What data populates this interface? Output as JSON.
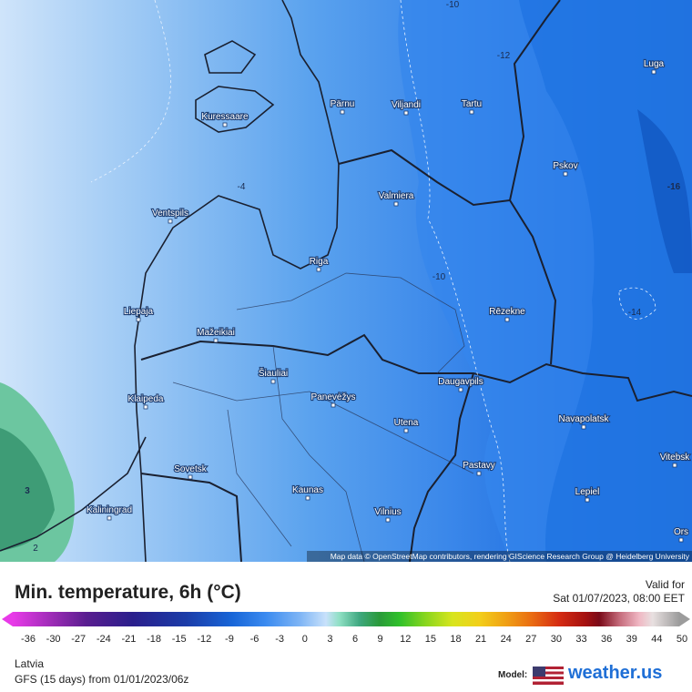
{
  "map": {
    "cities": [
      "Kuressaare",
      "Pärnu",
      "Viljandi",
      "Tartu",
      "Luga",
      "Pskov",
      "Valmiera",
      "Ventspils",
      "Riga",
      "Liepaja",
      "Rēzekne",
      "Mažeikiai",
      "Šiauliai",
      "Klaipeda",
      "Panevėžys",
      "Daugavpils",
      "Navapolatsk",
      "Utena",
      "Vitebsk",
      "Sovetsk",
      "Pastavy",
      "Kaunas",
      "Lepiel",
      "Kaliningrad",
      "Vilnius",
      "Ors"
    ],
    "contour_labels": [
      "-12",
      "-10",
      "-4",
      "-14",
      "-16",
      "3",
      "2",
      "-10"
    ],
    "attribution": "Map data © OpenStreetMap contributors, rendering GIScience Research Group @ Heidelberg University"
  },
  "header": {
    "title": "Min. temperature, 6h (°C)",
    "valid_label": "Valid for",
    "valid_time": "Sat 01/07/2023, 08:00 EET"
  },
  "legend": {
    "ticks": [
      -36,
      -30,
      -27,
      -24,
      -21,
      -18,
      -15,
      -12,
      -9,
      -6,
      -3,
      0,
      3,
      6,
      9,
      12,
      15,
      18,
      21,
      24,
      27,
      30,
      33,
      36,
      39,
      44,
      50
    ]
  },
  "footer": {
    "region": "Latvia",
    "model_run": "GFS (15 days) from 01/01/2023/06z",
    "model_label": "Model:",
    "brand": "weather.us"
  }
}
